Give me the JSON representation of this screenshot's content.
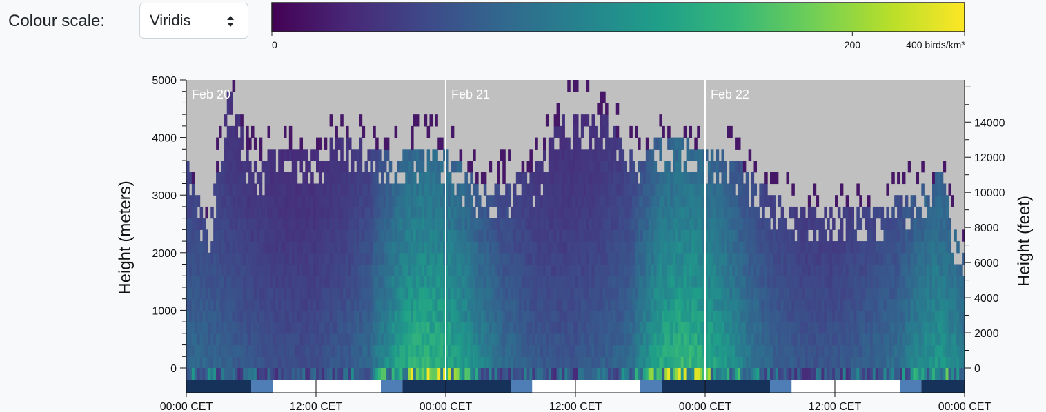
{
  "controls": {
    "colour_scale_label": "Colour scale:",
    "colour_scale_value": "Viridis"
  },
  "legend": {
    "stops": [
      "#440154",
      "#482878",
      "#3e4989",
      "#31688e",
      "#26828e",
      "#1f9e89",
      "#35b779",
      "#6ece58",
      "#b5de2b",
      "#fde725"
    ],
    "ticks": [
      {
        "label": "0",
        "value": 0
      },
      {
        "label": "200",
        "value": 200
      },
      {
        "label": "400 birds/km³",
        "value": 400
      }
    ]
  },
  "chart_data": {
    "type": "heatmap",
    "colorscale": "Viridis",
    "ylabel_left": "Height (meters)",
    "ylabel_right": "Height (feet)",
    "yticks_left": [
      0,
      1000,
      2000,
      3000,
      4000,
      5000
    ],
    "yticks_right": [
      0,
      2000,
      4000,
      6000,
      8000,
      10000,
      12000,
      14000
    ],
    "ylim_m": [
      0,
      5000
    ],
    "x_hours": [
      0,
      72
    ],
    "xticks": [
      {
        "hour": 0,
        "label": "00:00 CET"
      },
      {
        "hour": 12,
        "label": "12:00 CET"
      },
      {
        "hour": 24,
        "label": "00:00 CET"
      },
      {
        "hour": 36,
        "label": "12:00 CET"
      },
      {
        "hour": 48,
        "label": "00:00 CET"
      },
      {
        "hour": 60,
        "label": "12:00 CET"
      },
      {
        "hour": 72,
        "label": "00:00 CET"
      }
    ],
    "day_markers": [
      {
        "hour": 0,
        "label": "Feb 20"
      },
      {
        "hour": 24,
        "label": "Feb 21"
      },
      {
        "hour": 48,
        "label": "Feb 22"
      }
    ],
    "no_data_color": "#c0c0c0",
    "density_profile_birds_km3": [
      [
        0,
        8
      ],
      [
        3,
        6
      ],
      [
        6,
        3
      ],
      [
        9,
        2
      ],
      [
        12,
        2
      ],
      [
        15,
        4
      ],
      [
        17,
        8
      ],
      [
        18.5,
        30
      ],
      [
        20,
        70
      ],
      [
        21.5,
        95
      ],
      [
        22.5,
        100
      ],
      [
        23.5,
        90
      ],
      [
        25,
        60
      ],
      [
        27,
        25
      ],
      [
        29,
        10
      ],
      [
        32,
        4
      ],
      [
        35,
        3
      ],
      [
        38,
        4
      ],
      [
        41,
        8
      ],
      [
        42.5,
        30
      ],
      [
        44,
        75
      ],
      [
        45.5,
        100
      ],
      [
        47,
        95
      ],
      [
        48.5,
        70
      ],
      [
        50,
        40
      ],
      [
        52,
        15
      ],
      [
        54,
        6
      ],
      [
        57,
        3
      ],
      [
        60,
        3
      ],
      [
        63,
        5
      ],
      [
        66,
        10
      ],
      [
        68,
        30
      ],
      [
        69.5,
        45
      ],
      [
        71,
        30
      ],
      [
        72,
        15
      ]
    ],
    "data_top_m": [
      [
        0,
        3600
      ],
      [
        2,
        2400
      ],
      [
        4,
        4900
      ],
      [
        6,
        3600
      ],
      [
        9,
        3800
      ],
      [
        12,
        3800
      ],
      [
        15,
        4100
      ],
      [
        18,
        3700
      ],
      [
        21,
        3800
      ],
      [
        23,
        3900
      ],
      [
        26,
        3400
      ],
      [
        28,
        3100
      ],
      [
        30,
        3300
      ],
      [
        32,
        3400
      ],
      [
        35,
        4400
      ],
      [
        37,
        4500
      ],
      [
        39,
        4300
      ],
      [
        41,
        3800
      ],
      [
        45,
        4000
      ],
      [
        48,
        3800
      ],
      [
        50,
        3800
      ],
      [
        53,
        3200
      ],
      [
        56,
        2800
      ],
      [
        60,
        2800
      ],
      [
        64,
        2800
      ],
      [
        68,
        3100
      ],
      [
        70,
        3400
      ],
      [
        71,
        2400
      ],
      [
        72,
        2000
      ]
    ],
    "light_bands": [
      {
        "start": 0,
        "end": 6,
        "phase": "night"
      },
      {
        "start": 6,
        "end": 8,
        "phase": "twilight"
      },
      {
        "start": 8,
        "end": 18,
        "phase": "day"
      },
      {
        "start": 18,
        "end": 20,
        "phase": "twilight"
      },
      {
        "start": 20,
        "end": 30,
        "phase": "night"
      },
      {
        "start": 30,
        "end": 32,
        "phase": "twilight"
      },
      {
        "start": 32,
        "end": 42,
        "phase": "day"
      },
      {
        "start": 42,
        "end": 44,
        "phase": "twilight"
      },
      {
        "start": 44,
        "end": 54,
        "phase": "night"
      },
      {
        "start": 54,
        "end": 56,
        "phase": "twilight"
      },
      {
        "start": 56,
        "end": 66,
        "phase": "day"
      },
      {
        "start": 66,
        "end": 68,
        "phase": "twilight"
      },
      {
        "start": 68,
        "end": 72,
        "phase": "night"
      }
    ],
    "light_colors": {
      "night": "#16325b",
      "twilight": "#4f7db5",
      "day": "#ffffff"
    }
  }
}
